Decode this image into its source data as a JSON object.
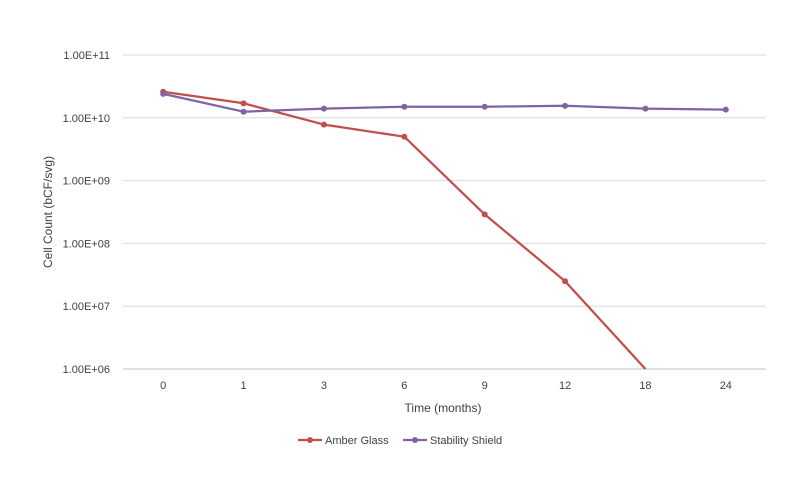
{
  "chart_data": {
    "type": "line",
    "title": "",
    "xlabel": "Time (months)",
    "ylabel": "Cell Count (bCF/svg)",
    "y_scale": "log",
    "ylim": [
      1000000,
      100000000000
    ],
    "y_ticks": [
      1000000,
      10000000,
      100000000,
      1000000000,
      10000000000,
      100000000000
    ],
    "y_tick_labels": [
      "1.00E+06",
      "1.00E+07",
      "1.00E+08",
      "1.00E+09",
      "1.00E+10",
      "1.00E+11"
    ],
    "categories": [
      "0",
      "1",
      "3",
      "6",
      "9",
      "12",
      "18",
      "24"
    ],
    "grid": "horizontal",
    "legend_position": "bottom",
    "series": [
      {
        "name": "Amber Glass",
        "color": "#C0504D",
        "values": [
          26000000000,
          17000000000,
          7800000000,
          5000000000,
          290000000,
          25000000,
          1000000,
          null
        ]
      },
      {
        "name": "Stability Shield",
        "color": "#8064A2",
        "values": [
          24000000000,
          12500000000,
          14000000000,
          15000000000,
          15000000000,
          15500000000,
          14000000000,
          13500000000
        ]
      }
    ]
  }
}
